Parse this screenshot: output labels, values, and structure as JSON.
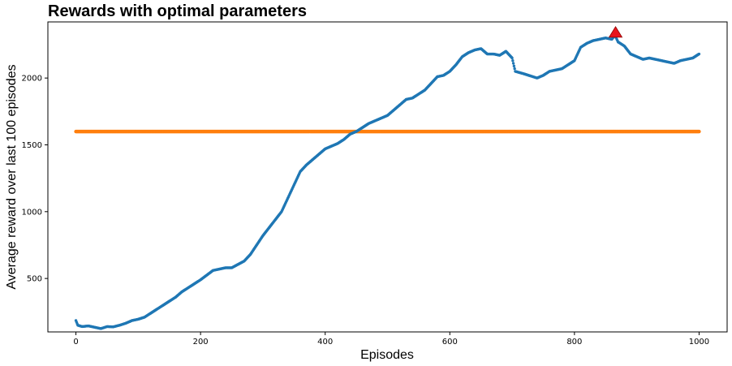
{
  "chart_data": {
    "type": "scatter",
    "title": "Rewards with optimal parameters",
    "xlabel": "Episodes",
    "ylabel": "Average reward over last 100 episodes",
    "xlim": [
      -45,
      1045
    ],
    "ylim": [
      100,
      2420
    ],
    "xticks": [
      0,
      200,
      400,
      600,
      800,
      1000
    ],
    "yticks": [
      500,
      1000,
      1500,
      2000
    ],
    "grid": false,
    "series": [
      {
        "role": "running_average",
        "color": "#1f77b4",
        "points": [
          [
            0,
            185
          ],
          [
            3,
            150
          ],
          [
            10,
            140
          ],
          [
            20,
            145
          ],
          [
            30,
            135
          ],
          [
            40,
            125
          ],
          [
            50,
            140
          ],
          [
            60,
            138
          ],
          [
            70,
            150
          ],
          [
            80,
            165
          ],
          [
            90,
            185
          ],
          [
            100,
            195
          ],
          [
            110,
            210
          ],
          [
            120,
            240
          ],
          [
            130,
            270
          ],
          [
            140,
            300
          ],
          [
            150,
            330
          ],
          [
            160,
            360
          ],
          [
            170,
            400
          ],
          [
            180,
            430
          ],
          [
            190,
            460
          ],
          [
            200,
            490
          ],
          [
            210,
            525
          ],
          [
            220,
            560
          ],
          [
            230,
            570
          ],
          [
            240,
            580
          ],
          [
            250,
            580
          ],
          [
            260,
            605
          ],
          [
            270,
            630
          ],
          [
            280,
            680
          ],
          [
            290,
            750
          ],
          [
            300,
            820
          ],
          [
            310,
            880
          ],
          [
            320,
            940
          ],
          [
            330,
            1000
          ],
          [
            340,
            1100
          ],
          [
            350,
            1200
          ],
          [
            360,
            1300
          ],
          [
            370,
            1350
          ],
          [
            380,
            1390
          ],
          [
            390,
            1430
          ],
          [
            400,
            1470
          ],
          [
            410,
            1490
          ],
          [
            420,
            1510
          ],
          [
            430,
            1540
          ],
          [
            440,
            1580
          ],
          [
            450,
            1600
          ],
          [
            460,
            1630
          ],
          [
            470,
            1660
          ],
          [
            480,
            1680
          ],
          [
            490,
            1700
          ],
          [
            500,
            1720
          ],
          [
            510,
            1760
          ],
          [
            520,
            1800
          ],
          [
            530,
            1840
          ],
          [
            540,
            1850
          ],
          [
            550,
            1880
          ],
          [
            560,
            1910
          ],
          [
            570,
            1960
          ],
          [
            580,
            2010
          ],
          [
            590,
            2020
          ],
          [
            600,
            2050
          ],
          [
            610,
            2100
          ],
          [
            620,
            2160
          ],
          [
            630,
            2190
          ],
          [
            640,
            2210
          ],
          [
            650,
            2220
          ],
          [
            660,
            2180
          ],
          [
            670,
            2180
          ],
          [
            680,
            2170
          ],
          [
            690,
            2200
          ],
          [
            700,
            2150
          ],
          [
            705,
            2050
          ],
          [
            720,
            2030
          ],
          [
            740,
            2000
          ],
          [
            750,
            2020
          ],
          [
            760,
            2050
          ],
          [
            770,
            2060
          ],
          [
            780,
            2070
          ],
          [
            790,
            2100
          ],
          [
            800,
            2130
          ],
          [
            810,
            2230
          ],
          [
            820,
            2260
          ],
          [
            830,
            2280
          ],
          [
            840,
            2290
          ],
          [
            850,
            2300
          ],
          [
            860,
            2290
          ],
          [
            865,
            2320
          ],
          [
            870,
            2270
          ],
          [
            880,
            2240
          ],
          [
            890,
            2180
          ],
          [
            900,
            2160
          ],
          [
            910,
            2140
          ],
          [
            920,
            2150
          ],
          [
            930,
            2140
          ],
          [
            940,
            2130
          ],
          [
            950,
            2120
          ],
          [
            960,
            2110
          ],
          [
            970,
            2130
          ],
          [
            980,
            2140
          ],
          [
            990,
            2150
          ],
          [
            1000,
            2180
          ]
        ]
      },
      {
        "role": "threshold",
        "color": "#ff7f0e",
        "y": 1600,
        "x_range": [
          0,
          1000
        ]
      }
    ],
    "best_marker": {
      "x": 866,
      "y": 2342,
      "shape": "triangle-up",
      "color": "#e8151d"
    }
  }
}
